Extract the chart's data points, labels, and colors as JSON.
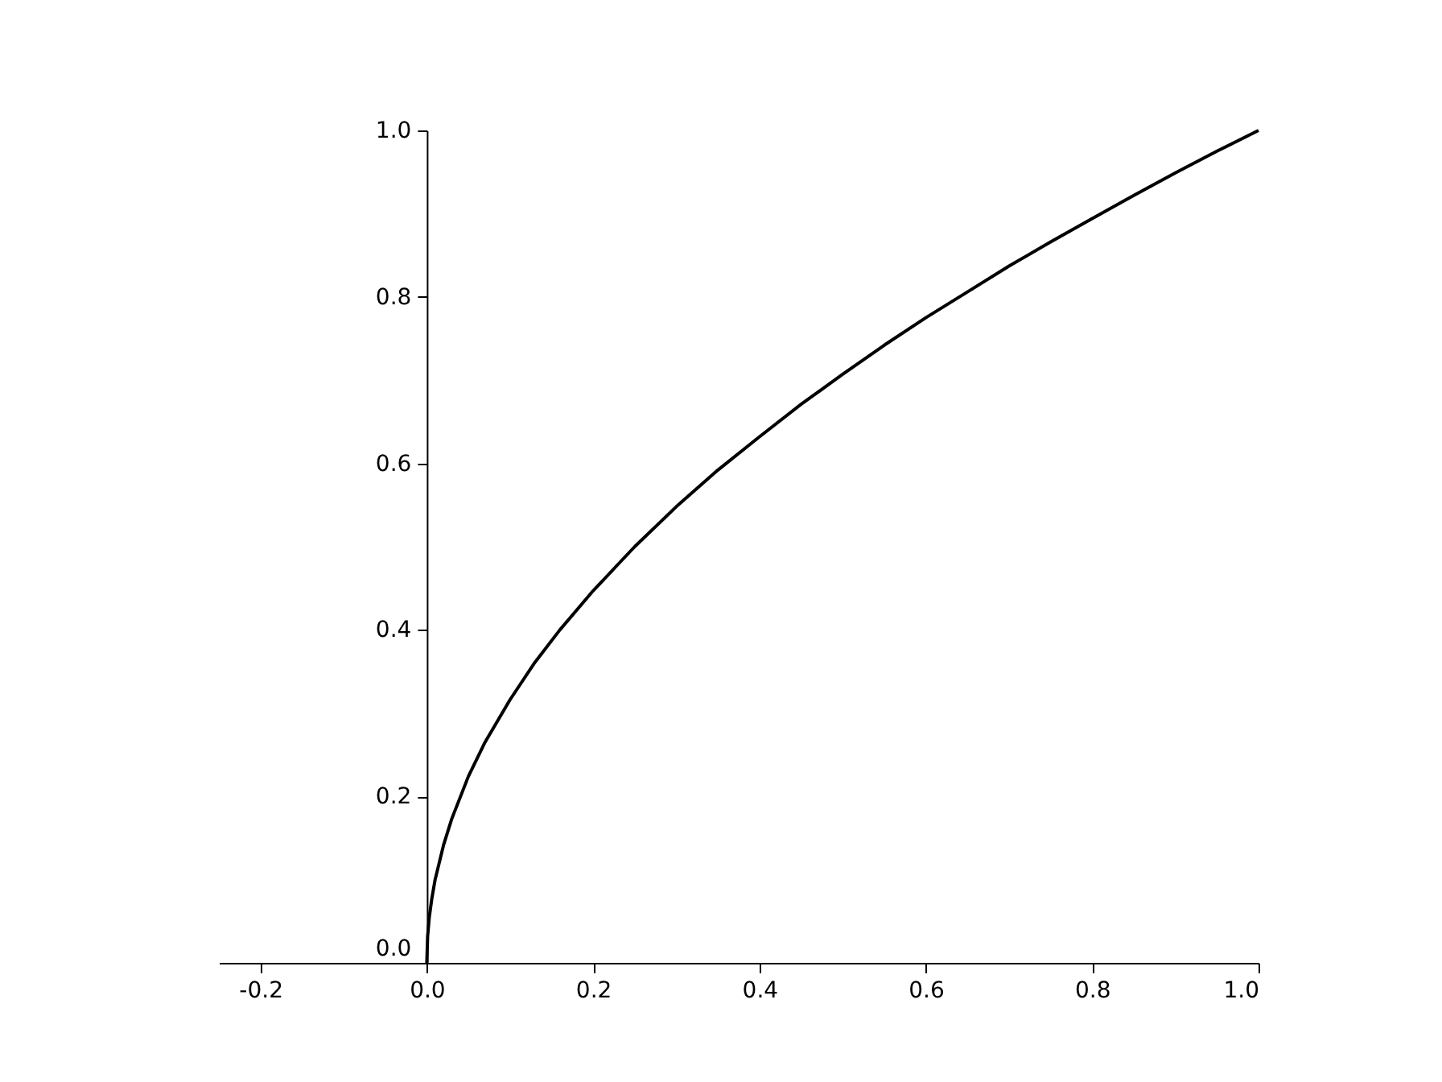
{
  "chart_data": {
    "type": "line",
    "x": [
      0,
      0.001,
      0.003,
      0.006,
      0.01,
      0.02,
      0.03,
      0.05,
      0.07,
      0.1,
      0.13,
      0.16,
      0.2,
      0.25,
      0.3,
      0.35,
      0.4,
      0.45,
      0.5,
      0.55,
      0.6,
      0.65,
      0.7,
      0.75,
      0.8,
      0.85,
      0.9,
      0.95,
      1.0
    ],
    "series": [
      {
        "color": "#000000",
        "values": [
          0,
          0.032,
          0.055,
          0.077,
          0.1,
          0.141,
          0.173,
          0.224,
          0.265,
          0.316,
          0.361,
          0.4,
          0.447,
          0.5,
          0.548,
          0.592,
          0.632,
          0.671,
          0.707,
          0.742,
          0.775,
          0.806,
          0.837,
          0.866,
          0.894,
          0.922,
          0.949,
          0.975,
          1.0
        ]
      }
    ],
    "xlim": [
      -0.25,
      1.0
    ],
    "ylim": [
      0,
      1.0
    ],
    "xticks": [
      {
        "value": -0.2,
        "label": "-0.2"
      },
      {
        "value": 0,
        "label": "0.0"
      },
      {
        "value": 0.2,
        "label": "0.2"
      },
      {
        "value": 0.4,
        "label": "0.4"
      },
      {
        "value": 0.6,
        "label": "0.6"
      },
      {
        "value": 0.8,
        "label": "0.8"
      },
      {
        "value": 1,
        "label": "1.0"
      }
    ],
    "yticks": [
      {
        "value": 0,
        "label": "0.0"
      },
      {
        "value": 0.2,
        "label": "0.2"
      },
      {
        "value": 0.4,
        "label": "0.4"
      },
      {
        "value": 0.6,
        "label": "0.6"
      },
      {
        "value": 0.8,
        "label": "0.8"
      },
      {
        "value": 1,
        "label": "1.0"
      }
    ],
    "grid": false,
    "marker": "none",
    "line_style": "solid"
  }
}
